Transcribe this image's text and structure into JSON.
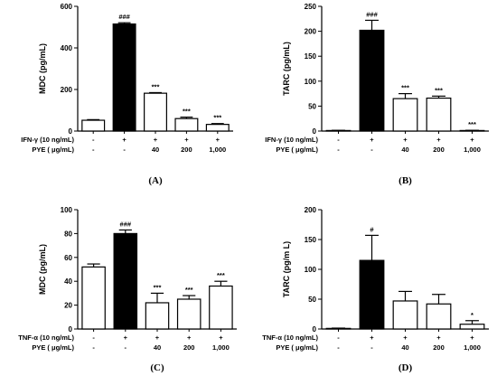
{
  "chart_data": [
    {
      "type": "bar",
      "panel": "(A)",
      "ylabel": "MDC (pg/mL)",
      "ylim": [
        0,
        600
      ],
      "yticks": [
        0,
        200,
        400,
        600
      ],
      "categories": [
        "1",
        "2",
        "3",
        "4",
        "5"
      ],
      "values": [
        52,
        515,
        182,
        60,
        32
      ],
      "errors": [
        3,
        6,
        3,
        7,
        4
      ],
      "fills": [
        "#ffffff",
        "#000000",
        "#ffffff",
        "#ffffff",
        "#ffffff"
      ],
      "annotations": [
        "",
        "###",
        "***",
        "***",
        "***"
      ],
      "conditions": [
        {
          "label": "IFN-γ  (10 ng/mL)",
          "values": [
            "-",
            "+",
            "+",
            "+",
            "+"
          ]
        },
        {
          "label": "PYE ( μg/mL)",
          "values": [
            "-",
            "-",
            "40",
            "200",
            "1,000"
          ]
        }
      ]
    },
    {
      "type": "bar",
      "panel": "(B)",
      "ylabel": "TARC (pg/mL)",
      "ylim": [
        0,
        250
      ],
      "yticks": [
        0,
        50,
        100,
        150,
        200,
        250
      ],
      "categories": [
        "1",
        "2",
        "3",
        "4",
        "5"
      ],
      "values": [
        1,
        202,
        65,
        66,
        1
      ],
      "errors": [
        0.5,
        20,
        10,
        4,
        0.5
      ],
      "fills": [
        "#ffffff",
        "#000000",
        "#ffffff",
        "#ffffff",
        "#ffffff"
      ],
      "annotations": [
        "",
        "###",
        "***",
        "***",
        "***"
      ],
      "conditions": [
        {
          "label": "IFN-γ  (10 ng/mL)",
          "values": [
            "-",
            "+",
            "+",
            "+",
            "+"
          ]
        },
        {
          "label": "PYE ( μg/mL)",
          "values": [
            "-",
            "-",
            "40",
            "200",
            "1,000"
          ]
        }
      ]
    },
    {
      "type": "bar",
      "panel": "(C)",
      "ylabel": "MDC (pg/mL)",
      "ylim": [
        0,
        100
      ],
      "yticks": [
        0,
        20,
        40,
        60,
        80,
        100
      ],
      "categories": [
        "1",
        "2",
        "3",
        "4",
        "5"
      ],
      "values": [
        52,
        80,
        22,
        25,
        36
      ],
      "errors": [
        2.5,
        3,
        8,
        3,
        4
      ],
      "fills": [
        "#ffffff",
        "#000000",
        "#ffffff",
        "#ffffff",
        "#ffffff"
      ],
      "annotations": [
        "",
        "###",
        "***",
        "***",
        "***"
      ],
      "conditions": [
        {
          "label": "TNF-α  (10 ng/mL)",
          "values": [
            "-",
            "+",
            "+",
            "+",
            "+"
          ]
        },
        {
          "label": "PYE ( μg/mL)",
          "values": [
            "-",
            "-",
            "40",
            "200",
            "1,000"
          ]
        }
      ]
    },
    {
      "type": "bar",
      "panel": "(D)",
      "ylabel": "TARC (pg/m L)",
      "ylim": [
        0,
        200
      ],
      "yticks": [
        0,
        50,
        100,
        150,
        200
      ],
      "categories": [
        "1",
        "2",
        "3",
        "4",
        "5"
      ],
      "values": [
        1,
        115,
        47,
        42,
        8
      ],
      "errors": [
        0.5,
        42,
        16,
        16,
        6
      ],
      "fills": [
        "#ffffff",
        "#000000",
        "#ffffff",
        "#ffffff",
        "#ffffff"
      ],
      "annotations": [
        "",
        "#",
        "",
        "",
        "*"
      ],
      "conditions": [
        {
          "label": "TNF-α  (10 ng/mL)",
          "values": [
            "-",
            "+",
            "+",
            "+",
            "+"
          ]
        },
        {
          "label": "PYE ( μg/mL)",
          "values": [
            "-",
            "-",
            "40",
            "200",
            "1,000"
          ]
        }
      ]
    }
  ]
}
